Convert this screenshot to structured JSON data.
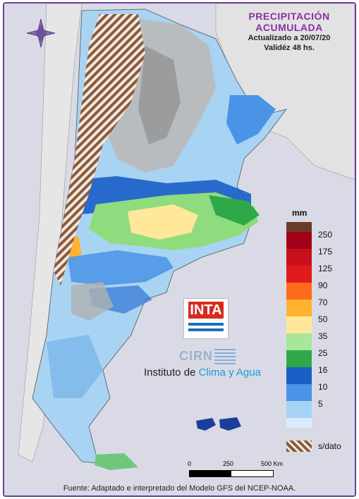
{
  "title": {
    "line1": "PRECIPITACIÓN",
    "line2": "ACUMULADA",
    "updated": "Actualizado a 20/07/20",
    "validity": "Validéz 48 hs."
  },
  "legend": {
    "unit": "mm",
    "items": [
      {
        "label": "250",
        "color": "#6b3b2a"
      },
      {
        "label": "175",
        "color": "#a00018"
      },
      {
        "label": "125",
        "color": "#e01b1b"
      },
      {
        "label": "90",
        "color": "#ff6a1a"
      },
      {
        "label": "70",
        "color": "#ffb230"
      },
      {
        "label": "50",
        "color": "#ffe89a"
      },
      {
        "label": "35",
        "color": "#a8e69a"
      },
      {
        "label": "25",
        "color": "#2fa84a"
      },
      {
        "label": "16",
        "color": "#1a5ec8"
      },
      {
        "label": "10",
        "color": "#4a93e6"
      },
      {
        "label": "5",
        "color": "#a6d3f5"
      }
    ],
    "no_data": "s/dato"
  },
  "logo": {
    "inta": "INTA",
    "cirn": "CIRN"
  },
  "institute": {
    "prefix": "Instituto de ",
    "highlight": "Clima y Agua"
  },
  "scale": {
    "labels": [
      "0",
      "250",
      "500 Km"
    ]
  },
  "footer": "Fuente: Adaptado e interpretado del Modelo GFS del NCEP-NOAA.",
  "colors": {
    "border": "#6a3fa0",
    "title": "#8b2fa8"
  }
}
